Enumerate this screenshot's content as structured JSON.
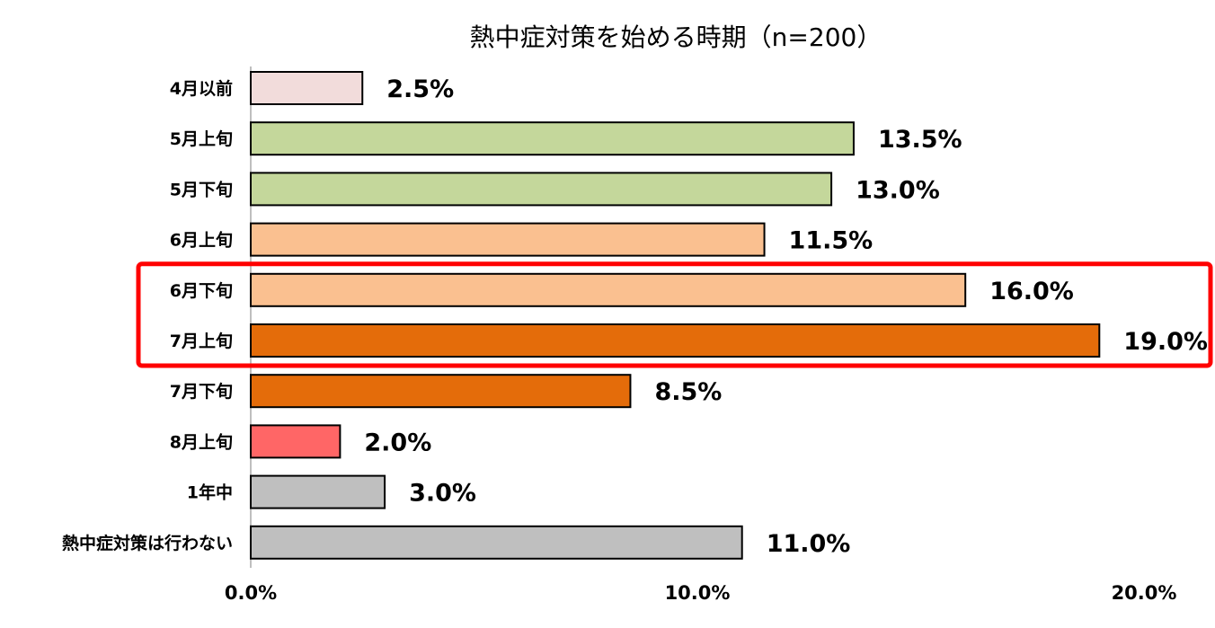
{
  "chart_data": {
    "type": "bar",
    "orientation": "horizontal",
    "title": "熱中症対策を始める時期（n=200）",
    "categories": [
      "4月以前",
      "5月上旬",
      "5月下旬",
      "6月上旬",
      "6月下旬",
      "7月上旬",
      "7月下旬",
      "8月上旬",
      "1年中",
      "熱中症対策は行わない"
    ],
    "values": [
      2.5,
      13.5,
      13.0,
      11.5,
      16.0,
      19.0,
      8.5,
      2.0,
      3.0,
      11.0
    ],
    "value_labels": [
      "2.5%",
      "13.5%",
      "13.0%",
      "11.5%",
      "16.0%",
      "19.0%",
      "8.5%",
      "2.0%",
      "3.0%",
      "11.0%"
    ],
    "bar_colors": [
      "#f2dcdb",
      "#c4d79b",
      "#c4d79b",
      "#fac090",
      "#fac090",
      "#e46c0a",
      "#e46c0a",
      "#ff6666",
      "#bfbfbf",
      "#bfbfbf"
    ],
    "xlim": [
      0,
      20
    ],
    "xticks": [
      0,
      10,
      20
    ],
    "xtick_labels": [
      "0.0%",
      "10.0%",
      "20.0%"
    ],
    "grid": false,
    "highlight": {
      "categories": [
        "6月下旬",
        "7月上旬"
      ],
      "color": "#ff0000"
    }
  }
}
